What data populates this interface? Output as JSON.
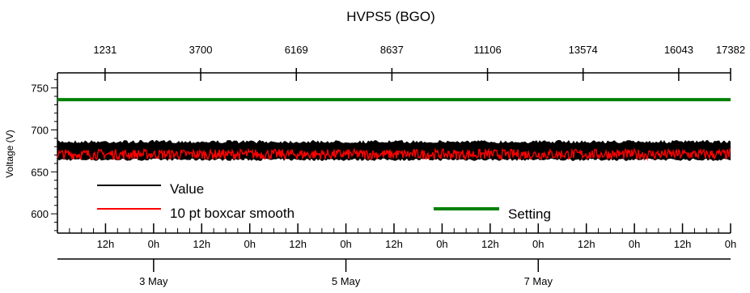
{
  "chart_data": {
    "type": "line",
    "title": "HVPS5 (BGO)",
    "ylabel": "Voltage (V)",
    "ylim": [
      577,
      768
    ],
    "yticks": [
      600,
      650,
      700,
      750
    ],
    "top_axis": {
      "range": [
        1,
        17382
      ],
      "ticks": [
        "1231",
        "3700",
        "6169",
        "8637",
        "11106",
        "13574",
        "16043",
        "17382"
      ]
    },
    "bottom_axis": {
      "range_hours": [
        0,
        168
      ],
      "hour_tick_labels": [
        "12h",
        "0h",
        "12h",
        "0h",
        "12h",
        "0h",
        "12h",
        "0h",
        "12h",
        "0h",
        "12h",
        "0h",
        "12h",
        "0h"
      ],
      "date_labels": [
        "3 May",
        "5 May",
        "7 May"
      ]
    },
    "series": [
      {
        "name": "Value",
        "color": "#000000",
        "band": [
          663,
          688
        ]
      },
      {
        "name": "10 pt boxcar smooth",
        "color": "#ff0000",
        "mean": 671,
        "band": [
          665,
          677
        ]
      },
      {
        "name": "Setting",
        "color": "#008000",
        "values": [
          736,
          736
        ]
      }
    ]
  }
}
